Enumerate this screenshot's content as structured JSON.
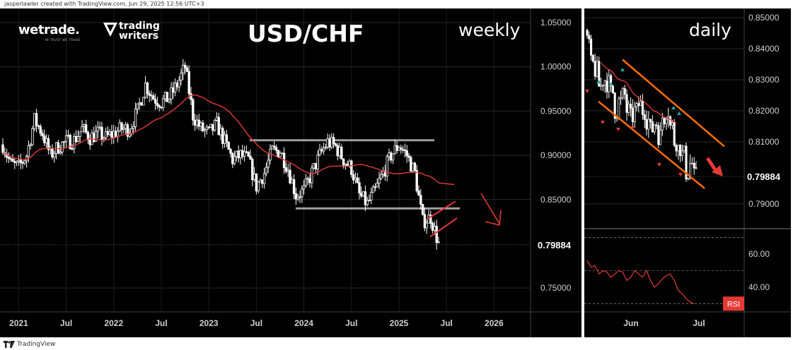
{
  "header": {
    "attribution": "jasperlawler created with TradingView.com, Jun 29, 2025 12:56 UTC+3"
  },
  "footer": {
    "brand": "TradingView"
  },
  "logos": {
    "wetrade": "wetrade.",
    "wetrade_tagline": "IN TRUST WE TRADE",
    "tw_line1": "trading",
    "tw_line2": "writers"
  },
  "colors": {
    "background": "#000000",
    "ma": "#e53935",
    "channel": "#ff6d00",
    "zone": "#9e9e9e",
    "rsi": "#e53935",
    "arrow": "#e53935",
    "candle": "#ffffff"
  },
  "chart_data": [
    {
      "type": "candlestick",
      "title": "USD/CHF",
      "timeframe_label": "weekly",
      "y_ticks": [
        1.05,
        1.0,
        0.95,
        0.9,
        0.85,
        0.75
      ],
      "y_tick_labels": [
        "1.05000",
        "1.00000",
        "0.95000",
        "0.90000",
        "0.85000",
        "0.75000"
      ],
      "ylim": [
        0.723,
        1.066
      ],
      "x_ticks": [
        "2021",
        "Jul",
        "2022",
        "Jul",
        "2023",
        "Jul",
        "2024",
        "Jul",
        "2025",
        "Jul",
        "2026"
      ],
      "last_price": 0.79884,
      "last_price_label": "0.79884",
      "moving_average": "red line",
      "horizontal_levels": [
        0.917,
        0.84
      ],
      "approx_closes": [
        [
          "2020-11",
          0.912
        ],
        [
          "2020-12",
          0.89
        ],
        [
          "2021-01",
          0.887
        ],
        [
          "2021-02",
          0.9
        ],
        [
          "2021-03",
          0.94
        ],
        [
          "2021-04",
          0.925
        ],
        [
          "2021-05",
          0.9
        ],
        [
          "2021-06",
          0.91
        ],
        [
          "2021-07",
          0.915
        ],
        [
          "2021-08",
          0.917
        ],
        [
          "2021-09",
          0.93
        ],
        [
          "2021-10",
          0.92
        ],
        [
          "2021-11",
          0.925
        ],
        [
          "2021-12",
          0.92
        ],
        [
          "2022-01",
          0.925
        ],
        [
          "2022-02",
          0.93
        ],
        [
          "2022-03",
          0.93
        ],
        [
          "2022-04",
          0.95
        ],
        [
          "2022-05",
          0.98
        ],
        [
          "2022-06",
          0.965
        ],
        [
          "2022-07",
          0.96
        ],
        [
          "2022-08",
          0.965
        ],
        [
          "2022-09",
          0.98
        ],
        [
          "2022-10",
          1.0
        ],
        [
          "2022-11",
          0.945
        ],
        [
          "2022-12",
          0.93
        ],
        [
          "2023-01",
          0.925
        ],
        [
          "2023-02",
          0.935
        ],
        [
          "2023-03",
          0.915
        ],
        [
          "2023-04",
          0.895
        ],
        [
          "2023-05",
          0.9
        ],
        [
          "2023-06",
          0.895
        ],
        [
          "2023-07",
          0.865
        ],
        [
          "2023-08",
          0.88
        ],
        [
          "2023-09",
          0.905
        ],
        [
          "2023-10",
          0.905
        ],
        [
          "2023-11",
          0.885
        ],
        [
          "2023-12",
          0.855
        ],
        [
          "2024-01",
          0.86
        ],
        [
          "2024-02",
          0.88
        ],
        [
          "2024-03",
          0.9
        ],
        [
          "2024-04",
          0.915
        ],
        [
          "2024-05",
          0.91
        ],
        [
          "2024-06",
          0.895
        ],
        [
          "2024-07",
          0.885
        ],
        [
          "2024-08",
          0.855
        ],
        [
          "2024-09",
          0.845
        ],
        [
          "2024-10",
          0.86
        ],
        [
          "2024-11",
          0.88
        ],
        [
          "2024-12",
          0.9
        ],
        [
          "2025-01",
          0.912
        ],
        [
          "2025-02",
          0.9
        ],
        [
          "2025-03",
          0.88
        ],
        [
          "2025-04",
          0.825
        ],
        [
          "2025-05",
          0.83
        ],
        [
          "2025-06",
          0.8
        ]
      ]
    },
    {
      "type": "candlestick",
      "timeframe_label": "daily",
      "y_ticks": [
        0.85,
        0.84,
        0.83,
        0.82,
        0.81,
        0.79
      ],
      "y_tick_labels": [
        "0.85000",
        "0.84000",
        "0.83000",
        "0.82000",
        "0.81000",
        "0.79000"
      ],
      "ylim": [
        0.782,
        0.853
      ],
      "x_ticks": [
        "Jun",
        "Jul"
      ],
      "last_price": 0.79884,
      "last_price_label": "0.79884",
      "moving_average": "red line",
      "channel_lines": "descending parallel channel",
      "approx_closes": [
        [
          1,
          0.842
        ],
        [
          2,
          0.835
        ],
        [
          3,
          0.833
        ],
        [
          4,
          0.828
        ],
        [
          5,
          0.83
        ],
        [
          6,
          0.829
        ],
        [
          7,
          0.826
        ],
        [
          8,
          0.82
        ],
        [
          9,
          0.823
        ],
        [
          10,
          0.825
        ],
        [
          11,
          0.82
        ],
        [
          12,
          0.818
        ],
        [
          13,
          0.82
        ],
        [
          14,
          0.822
        ],
        [
          15,
          0.82
        ],
        [
          16,
          0.817
        ],
        [
          17,
          0.814
        ],
        [
          18,
          0.816
        ],
        [
          19,
          0.812
        ],
        [
          20,
          0.818
        ],
        [
          21,
          0.82
        ],
        [
          22,
          0.815
        ],
        [
          23,
          0.81
        ],
        [
          24,
          0.808
        ],
        [
          25,
          0.806
        ],
        [
          26,
          0.8
        ],
        [
          27,
          0.803
        ],
        [
          28,
          0.799
        ]
      ],
      "rsi": {
        "label": "RSI",
        "ticks": [
          60,
          40
        ],
        "tick_labels": [
          "60.00",
          "40.00"
        ],
        "ylim": [
          25,
          72
        ],
        "approx_values": [
          56,
          52,
          53,
          48,
          50,
          49,
          46,
          48,
          50,
          49,
          44,
          46,
          50,
          48,
          46,
          50,
          44,
          40,
          42,
          45,
          47,
          48,
          44,
          38,
          36,
          33,
          31,
          30
        ]
      }
    }
  ]
}
